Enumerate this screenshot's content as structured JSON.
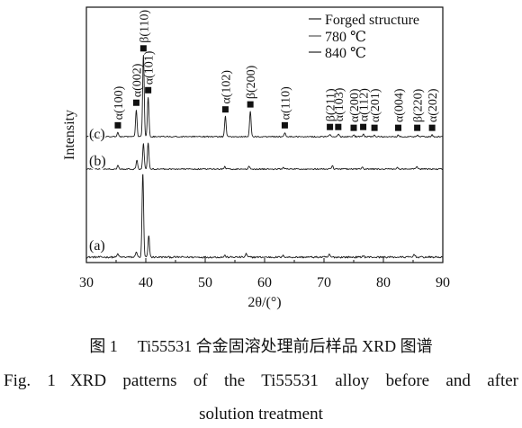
{
  "chart_data": {
    "type": "line",
    "xlabel": "2θ/(°)",
    "ylabel": "Intensity",
    "xlim": [
      30,
      90
    ],
    "xticks": [
      30,
      40,
      50,
      60,
      70,
      80,
      90
    ],
    "grid": false,
    "legend_position": "top-right",
    "legend": [
      "Forged structure",
      "780 ℃",
      "840 ℃"
    ],
    "series": [
      {
        "label": "(a)",
        "peaks": [
          [
            35.3,
            4
          ],
          [
            38.4,
            7
          ],
          [
            39.5,
            100
          ],
          [
            40.5,
            25
          ],
          [
            53.3,
            2
          ],
          [
            56.9,
            4
          ],
          [
            63.2,
            2
          ],
          [
            70.9,
            3
          ],
          [
            76.6,
            2
          ],
          [
            85.2,
            4
          ]
        ]
      },
      {
        "label": "(b)",
        "peaks": [
          [
            35.3,
            5
          ],
          [
            38.5,
            11
          ],
          [
            39.6,
            30
          ],
          [
            40.4,
            31
          ],
          [
            53.3,
            3
          ],
          [
            57.4,
            3
          ],
          [
            63.2,
            2
          ],
          [
            71.4,
            4
          ],
          [
            76.5,
            2
          ],
          [
            82.4,
            2
          ],
          [
            85.6,
            3
          ]
        ]
      },
      {
        "label": "(c)",
        "peaks": [
          [
            35.3,
            5
          ],
          [
            38.4,
            32
          ],
          [
            39.6,
            97
          ],
          [
            40.4,
            47
          ],
          [
            53.4,
            24
          ],
          [
            57.6,
            30
          ],
          [
            63.4,
            5
          ],
          [
            71.0,
            3
          ],
          [
            72.4,
            3
          ],
          [
            75.0,
            2
          ],
          [
            76.6,
            3
          ],
          [
            78.5,
            2
          ],
          [
            82.5,
            2
          ],
          [
            85.7,
            2
          ],
          [
            88.2,
            2
          ]
        ]
      }
    ],
    "peak_annotations": [
      {
        "two_theta": 35.3,
        "label": "α(100)"
      },
      {
        "two_theta": 38.4,
        "label": "α(002)"
      },
      {
        "two_theta": 39.6,
        "label": "β(110)"
      },
      {
        "two_theta": 40.4,
        "label": "α(101)"
      },
      {
        "two_theta": 53.4,
        "label": "α(102)"
      },
      {
        "two_theta": 57.6,
        "label": "β(200)"
      },
      {
        "two_theta": 63.4,
        "label": "α(110)"
      },
      {
        "two_theta": 71.0,
        "label": "β(211)"
      },
      {
        "two_theta": 72.4,
        "label": "α(103)"
      },
      {
        "two_theta": 75.0,
        "label": "α(200)"
      },
      {
        "two_theta": 76.6,
        "label": "α(112)"
      },
      {
        "two_theta": 78.5,
        "label": "α(201)"
      },
      {
        "two_theta": 82.5,
        "label": "α(004)"
      },
      {
        "two_theta": 85.7,
        "label": "β(220)"
      },
      {
        "two_theta": 88.2,
        "label": "α(202)"
      }
    ]
  },
  "caption": {
    "cn_label": "图 1",
    "cn_text": "Ti55531 合金固溶处理前后样品 XRD 图谱",
    "en_label": "Fig. 1",
    "en_text_line1": "XRD patterns of the Ti55531 alloy before and after",
    "en_text_line2": "solution treatment"
  }
}
